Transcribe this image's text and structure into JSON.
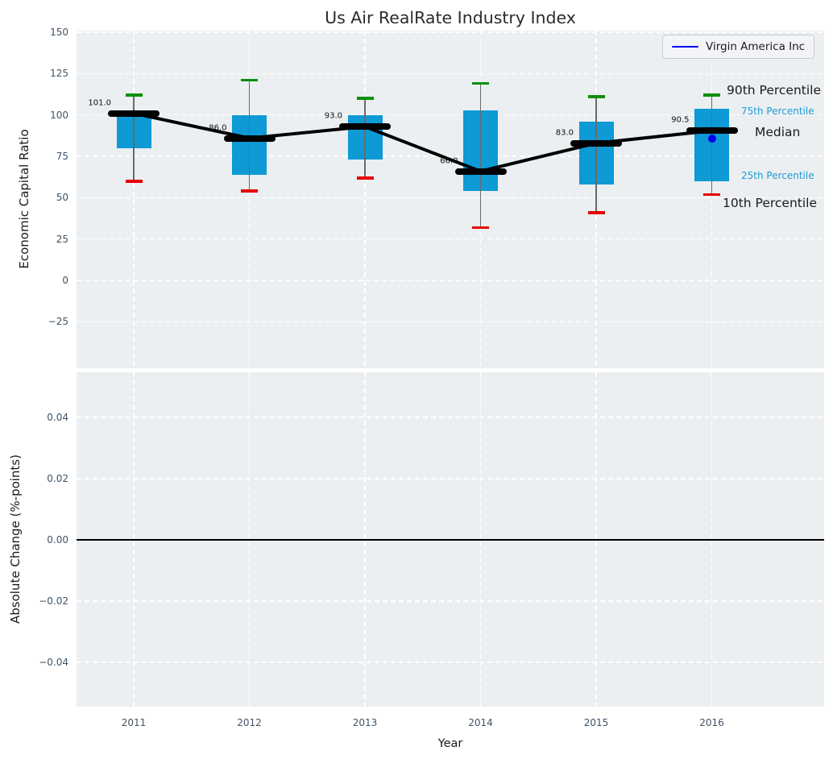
{
  "title": "Us Air RealRate Industry Index",
  "legend": {
    "label": "Virgin America Inc"
  },
  "colors": {
    "box_fill": "#0d9ad5",
    "median": "#000000",
    "p90_cap": "#0a8f0a",
    "p10_cap": "#e60000",
    "whisker": "#6a6a6a",
    "company": "#0000ee",
    "accent_text": "#1e9cd4",
    "text": "#1a1a1a",
    "tick_text": "#3f5366",
    "plot_bg": "#ebeff1",
    "grid": "#ffffff",
    "zero_line": "#000000"
  },
  "chart_data": {
    "type": "boxplot-with-median-line",
    "title": "Us Air RealRate Industry Index",
    "xlabel": "Year",
    "x": [
      2011,
      2012,
      2013,
      2014,
      2015,
      2016
    ],
    "top_panel": {
      "ylabel": "Economic Capital Ratio",
      "yticks": [
        150,
        125,
        100,
        75,
        50,
        25,
        0,
        -25
      ],
      "ytick_labels": [
        "150",
        "125",
        "100",
        "75",
        "50",
        "25",
        "0",
        "−25"
      ],
      "ylim": [
        -53,
        151
      ],
      "xlim": [
        2010.505,
        2016.972
      ],
      "grid": true,
      "boxes": [
        {
          "year": 2011,
          "p10": 60,
          "p25": 80,
          "median": 101.0,
          "p75": 100,
          "p90": 112,
          "label": "101.0"
        },
        {
          "year": 2012,
          "p10": 54,
          "p25": 64,
          "median": 86.0,
          "p75": 100,
          "p90": 121,
          "label": "86.0"
        },
        {
          "year": 2013,
          "p10": 62,
          "p25": 73,
          "median": 93.0,
          "p75": 100,
          "p90": 110,
          "label": "93.0"
        },
        {
          "year": 2014,
          "p10": 32,
          "p25": 54,
          "median": 66.0,
          "p75": 103,
          "p90": 119,
          "label": "66.0"
        },
        {
          "year": 2015,
          "p10": 41,
          "p25": 58,
          "median": 83.0,
          "p75": 96,
          "p90": 111,
          "label": "83.0"
        },
        {
          "year": 2016,
          "p10": 52,
          "p25": 60,
          "median": 90.5,
          "p75": 104,
          "p90": 112,
          "label": "90.5"
        }
      ],
      "median_trend": [
        101.0,
        86.0,
        93.0,
        66.0,
        83.0,
        90.5
      ],
      "company_series": {
        "name": "Virgin America Inc",
        "points": [
          {
            "year": 2016,
            "value": 86
          }
        ]
      },
      "annotations": [
        {
          "text": "90th Percentile",
          "size": "large",
          "color": "text",
          "value": 112,
          "x": 902,
          "dy": -6
        },
        {
          "text": "75th Percentile",
          "size": "small",
          "color": "accent_text",
          "value": 104,
          "x": 920,
          "dy": 3
        },
        {
          "text": "Median",
          "size": "large",
          "color": "text",
          "value": 90.5,
          "x": 937,
          "dy": 2
        },
        {
          "text": "25th Percentile",
          "size": "small",
          "color": "accent_text",
          "value": 60,
          "x": 920,
          "dy": -7
        },
        {
          "text": "10th Percentile",
          "size": "large",
          "color": "text",
          "value": 52,
          "x": 897,
          "dy": 11
        }
      ]
    },
    "bottom_panel": {
      "ylabel": "Absolute Change (%-points)",
      "yticks": [
        0.04,
        0.02,
        0.0,
        -0.02,
        -0.04
      ],
      "ytick_labels": [
        "0.04",
        "0.02",
        "0.00",
        "−0.02",
        "−0.04"
      ],
      "ylim": [
        -0.0545,
        0.0547
      ],
      "zero_line": 0.0,
      "grid": true
    }
  }
}
